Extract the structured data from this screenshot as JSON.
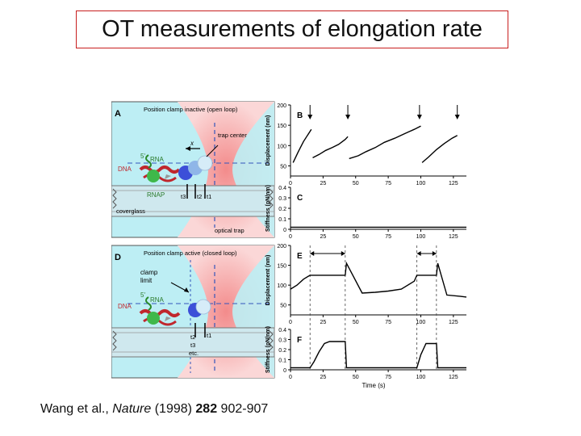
{
  "slide": {
    "title": "OT measurements of elongation rate",
    "citation": {
      "authors": "Wang et al., ",
      "journal": "Nature",
      "year": " (1998) ",
      "volume": "282",
      "pages": " 902-907"
    }
  },
  "figure": {
    "panel_a": {
      "letter": "A",
      "header": "Position clamp inactive (open loop)",
      "x_label": "x",
      "trap_center": "trap center",
      "five_prime": "5'",
      "rna": "RNA",
      "dna": "DNA",
      "rnap": "RNAP",
      "coverglass": "coverglass",
      "optical_trap": "optical trap",
      "t3": "t3",
      "t2": "t2",
      "t1": "t1"
    },
    "panel_d": {
      "letter": "D",
      "header": "Position clamp active (closed loop)",
      "clamp_limit_1": "clamp",
      "clamp_limit_2": "limit",
      "five_prime": "5'",
      "rna": "RNA",
      "dna": "DNA",
      "t2": "t2",
      "t1": "t1",
      "t3": "t3",
      "etc": "etc."
    },
    "time_label": "Time (s)"
  },
  "chart_data": [
    {
      "panel": "B",
      "type": "line",
      "ylabel": "Displacement (nm)",
      "xlim": [
        0,
        135
      ],
      "ylim": [
        25,
        200
      ],
      "xticks": [
        0,
        25,
        50,
        75,
        100,
        125
      ],
      "yticks": [
        50,
        100,
        150,
        200
      ],
      "arrows_at": [
        15,
        44,
        99,
        128
      ],
      "series": [
        {
          "x": [
            2,
            6,
            10,
            14,
            16
          ],
          "y": [
            58,
            85,
            110,
            130,
            140
          ]
        },
        {
          "x": [
            17,
            22,
            27,
            32,
            37,
            42,
            44
          ],
          "y": [
            70,
            78,
            88,
            95,
            103,
            115,
            122
          ]
        },
        {
          "x": [
            45,
            52,
            58,
            65,
            72,
            80,
            88,
            95,
            100
          ],
          "y": [
            68,
            75,
            85,
            95,
            108,
            118,
            130,
            140,
            148
          ]
        },
        {
          "x": [
            101,
            106,
            112,
            118,
            124,
            128
          ],
          "y": [
            58,
            72,
            90,
            105,
            118,
            125
          ]
        }
      ]
    },
    {
      "panel": "C",
      "type": "line",
      "ylabel": "Stiffness (pN/nm)",
      "xlim": [
        0,
        135
      ],
      "ylim": [
        0,
        0.4
      ],
      "xticks": [
        0,
        25,
        50,
        75,
        100,
        125
      ],
      "yticks": [
        0,
        0.1,
        0.2,
        0.3,
        0.4
      ],
      "series": [
        {
          "x": [
            0,
            135
          ],
          "y": [
            0.02,
            0.02
          ]
        }
      ]
    },
    {
      "panel": "E",
      "type": "line",
      "ylabel": "Displacement (nm)",
      "xlim": [
        0,
        135
      ],
      "ylim": [
        25,
        200
      ],
      "xticks": [
        0,
        25,
        50,
        75,
        100,
        125
      ],
      "yticks": [
        50,
        100,
        150,
        200
      ],
      "clamp_intervals": [
        [
          15,
          42
        ],
        [
          97,
          112
        ]
      ],
      "series": [
        {
          "x": [
            0,
            5,
            10,
            15,
            42,
            43,
            55,
            65,
            75,
            85,
            95,
            97,
            112,
            113,
            120,
            130,
            135
          ],
          "y": [
            90,
            100,
            115,
            125,
            125,
            155,
            80,
            82,
            85,
            90,
            110,
            125,
            125,
            155,
            75,
            72,
            70
          ]
        }
      ]
    },
    {
      "panel": "F",
      "type": "line",
      "ylabel": "Stiffness (pN/nm)",
      "xlabel": "Time (s)",
      "xlim": [
        0,
        135
      ],
      "ylim": [
        0,
        0.4
      ],
      "xticks": [
        0,
        25,
        50,
        75,
        100,
        125
      ],
      "yticks": [
        0,
        0.1,
        0.2,
        0.3,
        0.4
      ],
      "series": [
        {
          "x": [
            0,
            15,
            18,
            22,
            26,
            30,
            42,
            43,
            60,
            97,
            100,
            104,
            112,
            113,
            135
          ],
          "y": [
            0.02,
            0.02,
            0.08,
            0.18,
            0.26,
            0.28,
            0.28,
            0.02,
            0.02,
            0.02,
            0.15,
            0.26,
            0.26,
            0.02,
            0.02
          ]
        }
      ]
    }
  ]
}
